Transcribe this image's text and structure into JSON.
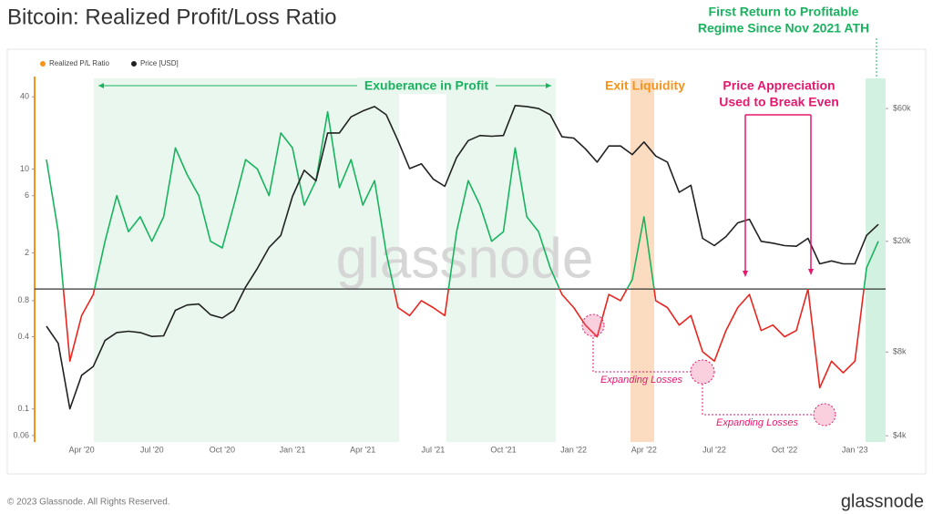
{
  "chart_data": {
    "type": "line",
    "title": "Bitcoin: Realized Profit/Loss Ratio",
    "annotations": {
      "return_profit": [
        "First Return to Profitable",
        "Regime Since Nov 2021 ATH"
      ],
      "exuberance": "Exuberance in Profit",
      "exit_liquidity": "Exit Liquidity",
      "price_appreciation": [
        "Price Appreciation",
        "Used to Break Even"
      ],
      "losses_1": "Expanding Losses",
      "losses_2": "Expanding Losses"
    },
    "watermark": "glassnode",
    "footer": "© 2023 Glassnode. All Rights Reserved.",
    "logo": "glassnode",
    "categories": [
      null,
      null,
      null,
      "Apr '20",
      null,
      null,
      null,
      null,
      null,
      "Jul '20",
      null,
      null,
      null,
      null,
      null,
      "Oct '20",
      null,
      null,
      null,
      null,
      null,
      "Jan '21",
      null,
      null,
      null,
      null,
      null,
      "Apr '21",
      null,
      null,
      null,
      null,
      null,
      "Jul '21",
      null,
      null,
      null,
      null,
      null,
      "Oct '21",
      null,
      null,
      null,
      null,
      null,
      "Jan '22",
      null,
      null,
      null,
      null,
      null,
      "Apr '22",
      null,
      null,
      null,
      null,
      null,
      "Jul '22",
      null,
      null,
      null,
      null,
      null,
      "Oct '22",
      null,
      null,
      null,
      null,
      null,
      "Jan '23",
      null,
      null
    ],
    "series": [
      {
        "name": "Realized P/L Ratio",
        "color": "#f7931a",
        "color_above": "#19b35f",
        "color_below": "#e8261f",
        "values": [
          12,
          3,
          0.25,
          0.6,
          0.9,
          2.5,
          6,
          3,
          4,
          2.5,
          4,
          15,
          9,
          6,
          2.5,
          2.2,
          5,
          12,
          10,
          6,
          20,
          15,
          5,
          8,
          30,
          7,
          12,
          5,
          8,
          2,
          0.7,
          0.6,
          0.8,
          0.7,
          0.6,
          3,
          8,
          5,
          2.5,
          3,
          15,
          4,
          3,
          1.5,
          0.9,
          0.7,
          0.5,
          0.4,
          0.9,
          0.8,
          1.2,
          4,
          0.8,
          0.7,
          0.5,
          0.6,
          0.3,
          0.25,
          0.45,
          0.7,
          0.9,
          0.45,
          0.5,
          0.4,
          0.45,
          1.0,
          0.15,
          0.25,
          0.2,
          0.25,
          1.5,
          2.5
        ]
      },
      {
        "name": "Price [USD]",
        "color": "#222222",
        "axis": "y2",
        "values": [
          9900,
          8600,
          5000,
          6600,
          7100,
          8800,
          9400,
          9500,
          9400,
          9100,
          9150,
          11300,
          11800,
          11900,
          10900,
          10600,
          11300,
          13700,
          16000,
          19000,
          21000,
          29000,
          36000,
          33000,
          49000,
          49000,
          56000,
          58800,
          61000,
          57000,
          46000,
          36500,
          38000,
          33500,
          31500,
          40000,
          46000,
          48000,
          47700,
          48000,
          61500,
          61000,
          60000,
          57000,
          47500,
          47000,
          43000,
          38500,
          44000,
          44000,
          41000,
          45500,
          40500,
          38500,
          30000,
          31800,
          20500,
          19300,
          20800,
          23300,
          24000,
          20000,
          19700,
          19300,
          19200,
          20500,
          16600,
          17000,
          16600,
          16600,
          21000,
          23000
        ]
      }
    ],
    "reference_line": 1,
    "ylog": true,
    "ylim": [
      0.053,
      57
    ],
    "yticks": [
      0.06,
      0.1,
      0.4,
      0.8,
      2,
      6,
      10,
      40
    ],
    "y2log": true,
    "y2lim": [
      3800,
      77000
    ],
    "y2ticks": [
      {
        "value": 4000,
        "label": "$4k"
      },
      {
        "value": 8000,
        "label": "$8k"
      },
      {
        "value": 20000,
        "label": "$20k"
      },
      {
        "value": 60000,
        "label": "$60k"
      }
    ]
  }
}
